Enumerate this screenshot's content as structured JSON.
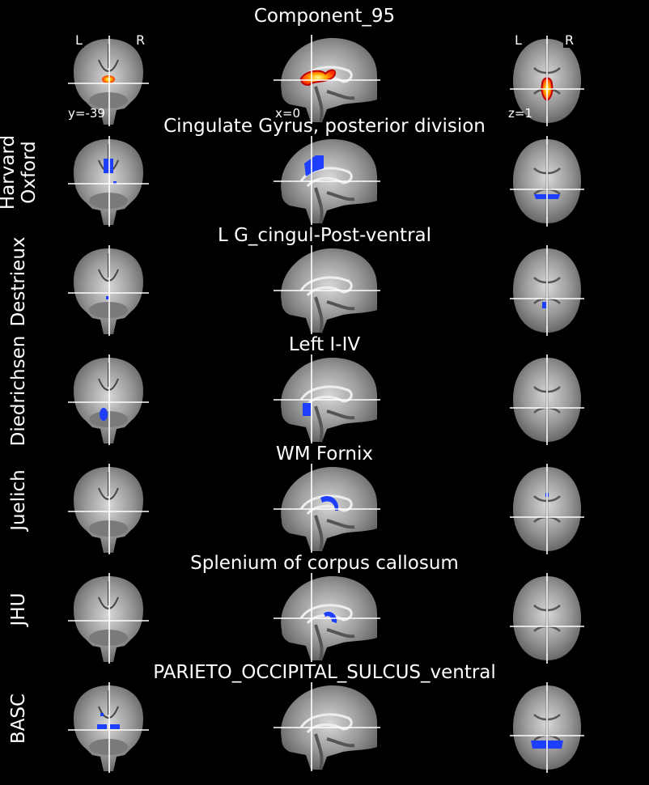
{
  "figure": {
    "title": "Component_95",
    "orientation_labels": {
      "left": "L",
      "right": "R"
    },
    "coords": {
      "coronal": "y=-39",
      "sagittal": "x=0",
      "axial": "z=1"
    },
    "colors": {
      "background": "#000000",
      "component_hot": "#ff3000",
      "atlas_blue": "#1f3fff",
      "crosshair": "#ffffff"
    }
  },
  "atlases": [
    {
      "name": "Harvard\nOxford",
      "region": "Cingulate Gyrus, posterior division",
      "overlay": "cingulate"
    },
    {
      "name": "Destrieux",
      "region": "L G_cingul-Post-ventral",
      "overlay": "small"
    },
    {
      "name": "Diedrichsen",
      "region": "Left I-IV",
      "overlay": "cerebellum"
    },
    {
      "name": "Juelich",
      "region": "WM Fornix",
      "overlay": "fornix"
    },
    {
      "name": "JHU",
      "region": "Splenium of corpus callosum",
      "overlay": "splenium"
    },
    {
      "name": "BASC",
      "region": "PARIETO_OCCIPITAL_SULCUS_ventral",
      "overlay": "basc"
    }
  ]
}
